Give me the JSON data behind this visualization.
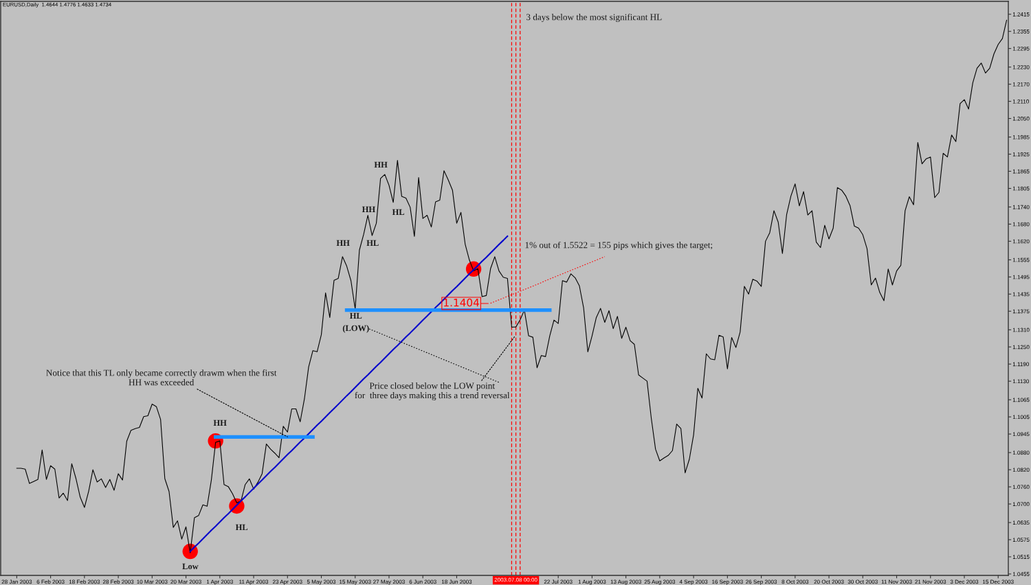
{
  "chart_data": {
    "type": "line",
    "title": "EURUSD,Daily  1.4644 1.4776 1.4633 1.4734",
    "categories": [
      "28 Jan 2003",
      null,
      null,
      null,
      null,
      null,
      null,
      null,
      "6 Feb 2003",
      null,
      null,
      null,
      null,
      null,
      null,
      null,
      "18 Feb 2003",
      null,
      null,
      null,
      null,
      null,
      null,
      null,
      "28 Feb 2003",
      null,
      null,
      null,
      null,
      null,
      null,
      null,
      "10 Mar 2003",
      null,
      null,
      null,
      null,
      null,
      null,
      null,
      "20 Mar 2003",
      null,
      null,
      null,
      null,
      null,
      null,
      null,
      "1 Apr 2003",
      null,
      null,
      null,
      null,
      null,
      null,
      null,
      "11 Apr 2003",
      null,
      null,
      null,
      null,
      null,
      null,
      null,
      "23 Apr 2003",
      null,
      null,
      null,
      null,
      null,
      null,
      null,
      "5 May 2003",
      null,
      null,
      null,
      null,
      null,
      null,
      null,
      "15 May 2003",
      null,
      null,
      null,
      null,
      null,
      null,
      null,
      "27 May 2003",
      null,
      null,
      null,
      null,
      null,
      null,
      null,
      "6 Jun 2003",
      null,
      null,
      null,
      null,
      null,
      null,
      null,
      "18 Jun 2003",
      null,
      null,
      null,
      null,
      null,
      null,
      null,
      null,
      null,
      null,
      null,
      null,
      null,
      null,
      null,
      null,
      null,
      null,
      null,
      null,
      null,
      null,
      null,
      "22 Jul 2003",
      null,
      null,
      null,
      null,
      null,
      null,
      null,
      "1 Aug 2003",
      null,
      null,
      null,
      null,
      null,
      null,
      null,
      "13 Aug 2003",
      null,
      null,
      null,
      null,
      null,
      null,
      null,
      "25 Aug 2003",
      null,
      null,
      null,
      null,
      null,
      null,
      null,
      "4 Sep 2003",
      null,
      null,
      null,
      null,
      null,
      null,
      null,
      "16 Sep 2003",
      null,
      null,
      null,
      null,
      null,
      null,
      null,
      "26 Sep 2003",
      null,
      null,
      null,
      null,
      null,
      null,
      null,
      "8 Oct 2003",
      null,
      null,
      null,
      null,
      null,
      null,
      null,
      "20 Oct 2003",
      null,
      null,
      null,
      null,
      null,
      null,
      null,
      "30 Oct 2003",
      null,
      null,
      null,
      null,
      null,
      null,
      null,
      "11 Nov 2003",
      null,
      null,
      null,
      null,
      null,
      null,
      null,
      "21 Nov 2003",
      null,
      null,
      null,
      null,
      null,
      null,
      null,
      "3 Dec 2003",
      null,
      null,
      null,
      null,
      null,
      null,
      null,
      "15 Dec 2003",
      null,
      null
    ],
    "series": [
      {
        "color": "#000000",
        "values": [
          1.0825,
          1.0825,
          1.0822,
          1.0772,
          1.0779,
          1.0786,
          1.0889,
          1.0786,
          1.0834,
          1.0822,
          1.0721,
          1.0738,
          1.0712,
          1.0841,
          1.0789,
          1.0724,
          1.0688,
          1.0745,
          1.082,
          1.0777,
          1.0788,
          1.0758,
          1.0786,
          1.0748,
          1.0806,
          1.0784,
          1.092,
          1.0958,
          1.0964,
          1.0968,
          1.1006,
          1.1009,
          1.105,
          1.1041,
          1.0996,
          1.0789,
          1.0744,
          1.0618,
          1.0641,
          1.0577,
          1.062,
          1.0529,
          1.0652,
          1.066,
          1.0697,
          1.0692,
          1.0784,
          1.0916,
          1.0921,
          1.0768,
          1.0761,
          1.0736,
          1.0704,
          1.071,
          1.0768,
          1.0788,
          1.0752,
          1.0776,
          1.0806,
          1.091,
          1.0892,
          1.0878,
          1.0862,
          1.0972,
          1.0952,
          1.1033,
          1.1033,
          1.0988,
          1.1068,
          1.118,
          1.1237,
          1.1233,
          1.1293,
          1.1439,
          1.1353,
          1.1483,
          1.149,
          1.1566,
          1.1533,
          1.1482,
          1.1383,
          1.1589,
          1.1644,
          1.1711,
          1.164,
          1.1683,
          1.184,
          1.1854,
          1.1816,
          1.1756,
          1.1903,
          1.1777,
          1.1771,
          1.1739,
          1.1637,
          1.1843,
          1.17,
          1.1711,
          1.167,
          1.1758,
          1.1764,
          1.1867,
          1.1835,
          1.1799,
          1.1683,
          1.1721,
          1.161,
          1.1554,
          1.1516,
          1.1524,
          1.1426,
          1.143,
          1.1524,
          1.1566,
          1.1516,
          1.1494,
          1.149,
          1.1319,
          1.132,
          1.1345,
          1.1379,
          1.1289,
          1.1284,
          1.1177,
          1.122,
          1.1216,
          1.1289,
          1.1344,
          1.1332,
          1.1482,
          1.1477,
          1.1506,
          1.1492,
          1.1464,
          1.1387,
          1.1233,
          1.1289,
          1.1353,
          1.1385,
          1.1336,
          1.1377,
          1.1314,
          1.1357,
          1.128,
          1.1319,
          1.1272,
          1.1259,
          1.1152,
          1.1141,
          1.113,
          1.1,
          1.0892,
          1.0851,
          1.0861,
          1.087,
          1.0887,
          1.098,
          1.0964,
          1.0809,
          1.0857,
          1.0942,
          1.1105,
          1.1071,
          1.1226,
          1.1208,
          1.1205,
          1.1291,
          1.1285,
          1.1173,
          1.1283,
          1.1248,
          1.1302,
          1.1462,
          1.1435,
          1.1487,
          1.148,
          1.1462,
          1.162,
          1.165,
          1.1727,
          1.1687,
          1.1577,
          1.1714,
          1.1778,
          1.1821,
          1.1744,
          1.1794,
          1.1712,
          1.1727,
          1.1617,
          1.1598,
          1.1676,
          1.1628,
          1.1666,
          1.1808,
          1.1799,
          1.1778,
          1.1744,
          1.1673,
          1.1666,
          1.1643,
          1.1594,
          1.1467,
          1.1491,
          1.1441,
          1.1412,
          1.1523,
          1.1467,
          1.1516,
          1.1536,
          1.1727,
          1.1776,
          1.1748,
          1.1966,
          1.1891,
          1.1909,
          1.1915,
          1.1773,
          1.1791,
          1.1928,
          1.1915,
          1.1992,
          1.1969,
          1.2102,
          1.2116,
          1.2083,
          1.2175,
          1.2226,
          1.2244,
          1.2209,
          1.2226,
          1.2276,
          1.2309,
          1.233,
          1.2394
        ]
      },
      {
        "color": "#0000cc",
        "values": [
          null,
          null,
          null,
          null,
          null,
          null,
          null,
          null,
          null,
          null,
          null,
          null,
          null,
          null,
          null,
          null,
          null,
          null,
          null,
          null,
          null,
          null,
          null,
          null,
          null,
          null,
          null,
          null,
          null,
          null,
          null,
          null,
          null,
          null,
          null,
          null,
          null,
          null,
          null,
          null,
          null,
          1.0534,
          1.0549,
          1.0563,
          1.0578,
          1.0593,
          1.0608,
          1.0622,
          1.0637,
          1.0652,
          1.0666,
          1.0681,
          1.0696,
          1.0711,
          1.0725,
          1.074,
          1.0755,
          1.077,
          1.0784,
          1.0799,
          1.0814,
          1.0828,
          1.0843,
          1.0858,
          1.0873,
          1.0887,
          1.0902,
          1.0917,
          1.0931,
          1.0946,
          1.0961,
          1.0976,
          1.099,
          1.1005,
          1.102,
          1.1034,
          1.1049,
          1.1064,
          1.1079,
          1.1093,
          1.1108,
          1.1123,
          1.1138,
          1.1152,
          1.1167,
          1.1182,
          1.1196,
          1.1211,
          1.1226,
          1.1241,
          1.1255,
          1.127,
          1.1285,
          1.1299,
          1.1314,
          1.1329,
          1.1344,
          1.1358,
          1.1373,
          1.1388,
          1.1402,
          1.1417,
          1.1432,
          1.1447,
          1.1461,
          1.1476,
          1.1491,
          1.1506,
          1.152,
          1.1535,
          1.155,
          1.1564,
          1.1579,
          1.1594,
          1.1609,
          1.1623,
          1.1638,
          null,
          null,
          null,
          null,
          null,
          null,
          null,
          null,
          null,
          null,
          null,
          null,
          null,
          null,
          null,
          null,
          null,
          null,
          null,
          null,
          null,
          null,
          null,
          null,
          null,
          null,
          null,
          null,
          null,
          null,
          null,
          null,
          null,
          null,
          null,
          null,
          null,
          null,
          null,
          null,
          null,
          null,
          null,
          null,
          null,
          null,
          null,
          null,
          null,
          null,
          null,
          null,
          null,
          null,
          null,
          null,
          null,
          null,
          null,
          null,
          null,
          null,
          null,
          null,
          null,
          null,
          null,
          null,
          null,
          null,
          null,
          null,
          null,
          null,
          null,
          null,
          null,
          null,
          null,
          null,
          null,
          null,
          null,
          null,
          null,
          null,
          null,
          null,
          null,
          null,
          null,
          null,
          null,
          null,
          null,
          null,
          null,
          null,
          null,
          null,
          null,
          null,
          null,
          null,
          null,
          null,
          null,
          null,
          null,
          null,
          null,
          null,
          null,
          null,
          null,
          null,
          null,
          null
        ]
      },
      {
        "color": "#1e90ff",
        "values": [
          null,
          null,
          null,
          null,
          null,
          null,
          null,
          null,
          null,
          null,
          null,
          null,
          null,
          null,
          null,
          null,
          null,
          null,
          null,
          null,
          null,
          null,
          null,
          null,
          null,
          null,
          null,
          null,
          null,
          null,
          null,
          null,
          null,
          null,
          null,
          null,
          null,
          null,
          null,
          null,
          null,
          null,
          null,
          null,
          null,
          null,
          null,
          1.0935,
          1.0935,
          1.0935,
          1.0935,
          1.0935,
          1.0935,
          1.0935,
          1.0935,
          1.0935,
          1.0935,
          1.0935,
          1.0935,
          1.0935,
          1.0935,
          1.0935,
          1.0935,
          1.0935,
          1.0935,
          1.0935,
          1.0935,
          1.0935,
          1.0935,
          1.0935,
          1.0935,
          null,
          null,
          null,
          null,
          null,
          null,
          null,
          null,
          null,
          null,
          null,
          null,
          null,
          null,
          null,
          null,
          null,
          null,
          null,
          null,
          null,
          null,
          null,
          null,
          null,
          null,
          null,
          null,
          null,
          null,
          null,
          null,
          null,
          null,
          null,
          null,
          null,
          null,
          null,
          null,
          null,
          null,
          null,
          null,
          null,
          null,
          null,
          null,
          null,
          null,
          null,
          null,
          null,
          null,
          null,
          null,
          null,
          null,
          null,
          null,
          null,
          null,
          null,
          null,
          null,
          null,
          null,
          null,
          null,
          null,
          null,
          null,
          null,
          null,
          null,
          null,
          null,
          null,
          null,
          null,
          null,
          null,
          null,
          null,
          null,
          null,
          null,
          null,
          null,
          null,
          null,
          null,
          null,
          null,
          null,
          null,
          null,
          null,
          null,
          null,
          null,
          null,
          null,
          null,
          null,
          null,
          null,
          null,
          null,
          null,
          null,
          null,
          null,
          null,
          null,
          null,
          null,
          null,
          null,
          null,
          null,
          null,
          null,
          null,
          null,
          null,
          null,
          null,
          null,
          null,
          null,
          null,
          null,
          null,
          null,
          null,
          null,
          null,
          null,
          null,
          null,
          null,
          null,
          null,
          null,
          null,
          null,
          null,
          null,
          null,
          null,
          null,
          null,
          null,
          null,
          null,
          null,
          null,
          null,
          null,
          null,
          null,
          null,
          null
        ]
      },
      {
        "color": "#1e90ff",
        "values": [
          null,
          null,
          null,
          null,
          null,
          null,
          null,
          null,
          null,
          null,
          null,
          null,
          null,
          null,
          null,
          null,
          null,
          null,
          null,
          null,
          null,
          null,
          null,
          null,
          null,
          null,
          null,
          null,
          null,
          null,
          null,
          null,
          null,
          null,
          null,
          null,
          null,
          null,
          null,
          null,
          null,
          null,
          null,
          null,
          null,
          null,
          null,
          null,
          null,
          null,
          null,
          null,
          null,
          null,
          null,
          null,
          null,
          null,
          null,
          null,
          null,
          null,
          null,
          null,
          null,
          null,
          null,
          null,
          null,
          null,
          null,
          null,
          null,
          null,
          null,
          null,
          null,
          null,
          1.1379,
          1.1379,
          1.1379,
          1.1379,
          1.1379,
          1.1379,
          1.1379,
          1.1379,
          1.1379,
          1.1379,
          1.1379,
          1.1379,
          1.1379,
          1.1379,
          1.1379,
          1.1379,
          1.1379,
          1.1379,
          1.1379,
          1.1379,
          1.1379,
          1.1379,
          1.1379,
          1.1379,
          1.1379,
          1.1379,
          1.1379,
          1.1379,
          1.1379,
          1.1379,
          1.1379,
          1.1379,
          1.1379,
          1.1379,
          1.1379,
          1.1379,
          1.1379,
          1.1379,
          1.1379,
          1.1379,
          1.1379,
          1.1379,
          1.1379,
          1.1379,
          1.1379,
          1.1379,
          1.1379,
          1.1379,
          1.1379,
          null,
          null,
          null,
          null,
          null,
          null,
          null,
          null,
          null,
          null,
          null,
          null,
          null,
          null,
          null,
          null,
          null,
          null,
          null,
          null,
          null,
          null,
          null,
          null,
          null,
          null,
          null,
          null,
          null,
          null,
          null,
          null,
          null,
          null,
          null,
          null,
          null,
          null,
          null,
          null,
          null,
          null,
          null,
          null,
          null,
          null,
          null,
          null,
          null,
          null,
          null,
          null,
          null,
          null,
          null,
          null,
          null,
          null,
          null,
          null,
          null,
          null,
          null,
          null,
          null,
          null,
          null,
          null,
          null,
          null,
          null,
          null,
          null,
          null,
          null,
          null,
          null,
          null,
          null,
          null,
          null,
          null,
          null,
          null,
          null,
          null,
          null,
          null,
          null,
          null,
          null,
          null,
          null,
          null,
          null,
          null,
          null,
          null,
          null,
          null,
          null,
          null,
          null,
          null,
          null,
          null,
          null,
          null
        ]
      },
      {
        "color": "#ff0000",
        "line_style": "dotted",
        "values": [
          null,
          null,
          null,
          null,
          null,
          null,
          null,
          null,
          null,
          null,
          null,
          null,
          null,
          null,
          null,
          null,
          null,
          null,
          null,
          null,
          null,
          null,
          null,
          null,
          null,
          null,
          null,
          null,
          null,
          null,
          null,
          null,
          null,
          null,
          null,
          null,
          null,
          null,
          null,
          null,
          null,
          null,
          null,
          null,
          null,
          null,
          null,
          null,
          null,
          null,
          null,
          null,
          null,
          null,
          null,
          null,
          null,
          null,
          null,
          null,
          null,
          null,
          null,
          null,
          null,
          null,
          null,
          null,
          null,
          null,
          null,
          null,
          null,
          null,
          null,
          null,
          null,
          null,
          null,
          null,
          null,
          null,
          null,
          null,
          null,
          null,
          null,
          null,
          null,
          null,
          null,
          null,
          null,
          null,
          null,
          null,
          null,
          null,
          null,
          null,
          null,
          null,
          null,
          null,
          null,
          null,
          null,
          null,
          null,
          null,
          null,
          null,
          1.1403,
          1.1409,
          1.1415,
          1.1421,
          1.1427,
          1.1433,
          1.1439,
          1.1445,
          1.1451,
          1.1457,
          1.1463,
          1.1469,
          1.1475,
          1.1482,
          1.1488,
          1.1494,
          1.15,
          1.1506,
          1.1512,
          1.1518,
          1.1524,
          1.153,
          1.1536,
          1.1542,
          1.1548,
          1.1554,
          1.156,
          1.1566,
          null,
          null,
          null,
          null,
          null,
          null,
          null,
          null,
          null,
          null,
          null,
          null,
          null,
          null,
          null,
          null,
          null,
          null,
          null,
          null,
          null,
          null,
          null,
          null,
          null,
          null,
          null,
          null,
          null,
          null,
          null,
          null,
          null,
          null,
          null,
          null,
          null,
          null,
          null,
          null,
          null,
          null,
          null,
          null,
          null,
          null,
          null,
          null,
          null,
          null,
          null,
          null,
          null,
          null,
          null,
          null,
          null,
          null,
          null,
          null,
          null,
          null,
          null,
          null,
          null,
          null,
          null,
          null,
          null,
          null,
          null,
          null,
          null,
          null,
          null,
          null,
          null,
          null,
          null,
          null,
          null,
          null,
          null,
          null,
          null,
          null,
          null,
          null,
          null,
          null,
          null,
          null,
          null,
          null,
          null
        ]
      },
      {
        "type": "scatter",
        "color": "#ff0000",
        "marker": "circle",
        "values": [
          null,
          null,
          null,
          null,
          null,
          null,
          null,
          null,
          null,
          null,
          null,
          null,
          null,
          null,
          null,
          null,
          null,
          null,
          null,
          null,
          null,
          null,
          null,
          null,
          null,
          null,
          null,
          null,
          null,
          null,
          null,
          null,
          null,
          null,
          null,
          null,
          null,
          null,
          null,
          null,
          null,
          1.0534,
          null,
          null,
          null,
          null,
          null,
          1.0921,
          null,
          null,
          null,
          null,
          1.0693,
          null,
          null,
          null,
          null,
          null,
          null,
          null,
          null,
          null,
          null,
          null,
          null,
          null,
          null,
          null,
          null,
          null,
          null,
          null,
          null,
          null,
          null,
          null,
          null,
          null,
          null,
          null,
          null,
          null,
          null,
          null,
          null,
          null,
          null,
          null,
          null,
          null,
          null,
          null,
          null,
          null,
          null,
          null,
          null,
          null,
          null,
          null,
          null,
          null,
          null,
          null,
          null,
          null,
          null,
          null,
          1.1523,
          null,
          null,
          null,
          null,
          null,
          null,
          null,
          null,
          null,
          null,
          null,
          null,
          null,
          null,
          null,
          null,
          null,
          null,
          null,
          null,
          null,
          null,
          null,
          null,
          null,
          null,
          null,
          null,
          null,
          null,
          null,
          null,
          null,
          null,
          null,
          null,
          null,
          null,
          null,
          null,
          null,
          null,
          null,
          null,
          null,
          null,
          null,
          null,
          null,
          null,
          null,
          null,
          null,
          null,
          null,
          null,
          null,
          null,
          null,
          null,
          null,
          null,
          null,
          null,
          null,
          null,
          null,
          null,
          null,
          null,
          null,
          null,
          null,
          null,
          null,
          null,
          null,
          null,
          null,
          null,
          null,
          null,
          null,
          null,
          null,
          null,
          null,
          null,
          null,
          null,
          null,
          null,
          null,
          null,
          null,
          null,
          null,
          null,
          null,
          null,
          null,
          null,
          null,
          null,
          null,
          null,
          null,
          null,
          null,
          null,
          null,
          null,
          null,
          null,
          null,
          null,
          null,
          null,
          null,
          null,
          null,
          null,
          null,
          null,
          null,
          null
        ]
      }
    ],
    "ylim": [
      1.045,
      1.246
    ],
    "yticks": [
      1.0455,
      1.0515,
      1.0575,
      1.0635,
      {
        "value": 1.07,
        "label": "1.0700"
      },
      {
        "value": 1.076,
        "label": "1.0760"
      },
      {
        "value": 1.082,
        "label": "1.0820"
      },
      {
        "value": 1.088,
        "label": "1.0880"
      },
      1.0945,
      1.1005,
      1.1065,
      {
        "value": 1.113,
        "label": "1.1130"
      },
      {
        "value": 1.119,
        "label": "1.1190"
      },
      {
        "value": 1.125,
        "label": "1.1250"
      },
      {
        "value": 1.131,
        "label": "1.1310"
      },
      1.1375,
      1.1435,
      1.1495,
      1.1555,
      {
        "value": 1.162,
        "label": "1.1620"
      },
      {
        "value": 1.168,
        "label": "1.1680"
      },
      {
        "value": 1.174,
        "label": "1.1740"
      },
      1.1805,
      1.1865,
      1.1925,
      1.1985,
      {
        "value": 1.205,
        "label": "1.2050"
      },
      {
        "value": 1.211,
        "label": "1.2110"
      },
      {
        "value": 1.217,
        "label": "1.2170"
      },
      {
        "value": 1.223,
        "label": "1.2230"
      },
      1.2295,
      1.2355,
      1.2415
    ],
    "annotations": [
      "HH",
      "HH",
      "HL",
      "HH",
      "HL",
      "HL",
      "(LOW)",
      "HH",
      "HL",
      "Low",
      {
        "text": "Notice that this TL only became correctly drawm when the first\nHH was exceeded",
        "x": "23 Apr 2003",
        "y": 1.0935
      },
      "Price closed below the LOW point\nfor  three days making this a trend reversal",
      "1.1404",
      "1% out of 1.5522 = 155 pips which gives the target;",
      "3 days below the most significant HL",
      "2003.07.08 00:00"
    ]
  }
}
